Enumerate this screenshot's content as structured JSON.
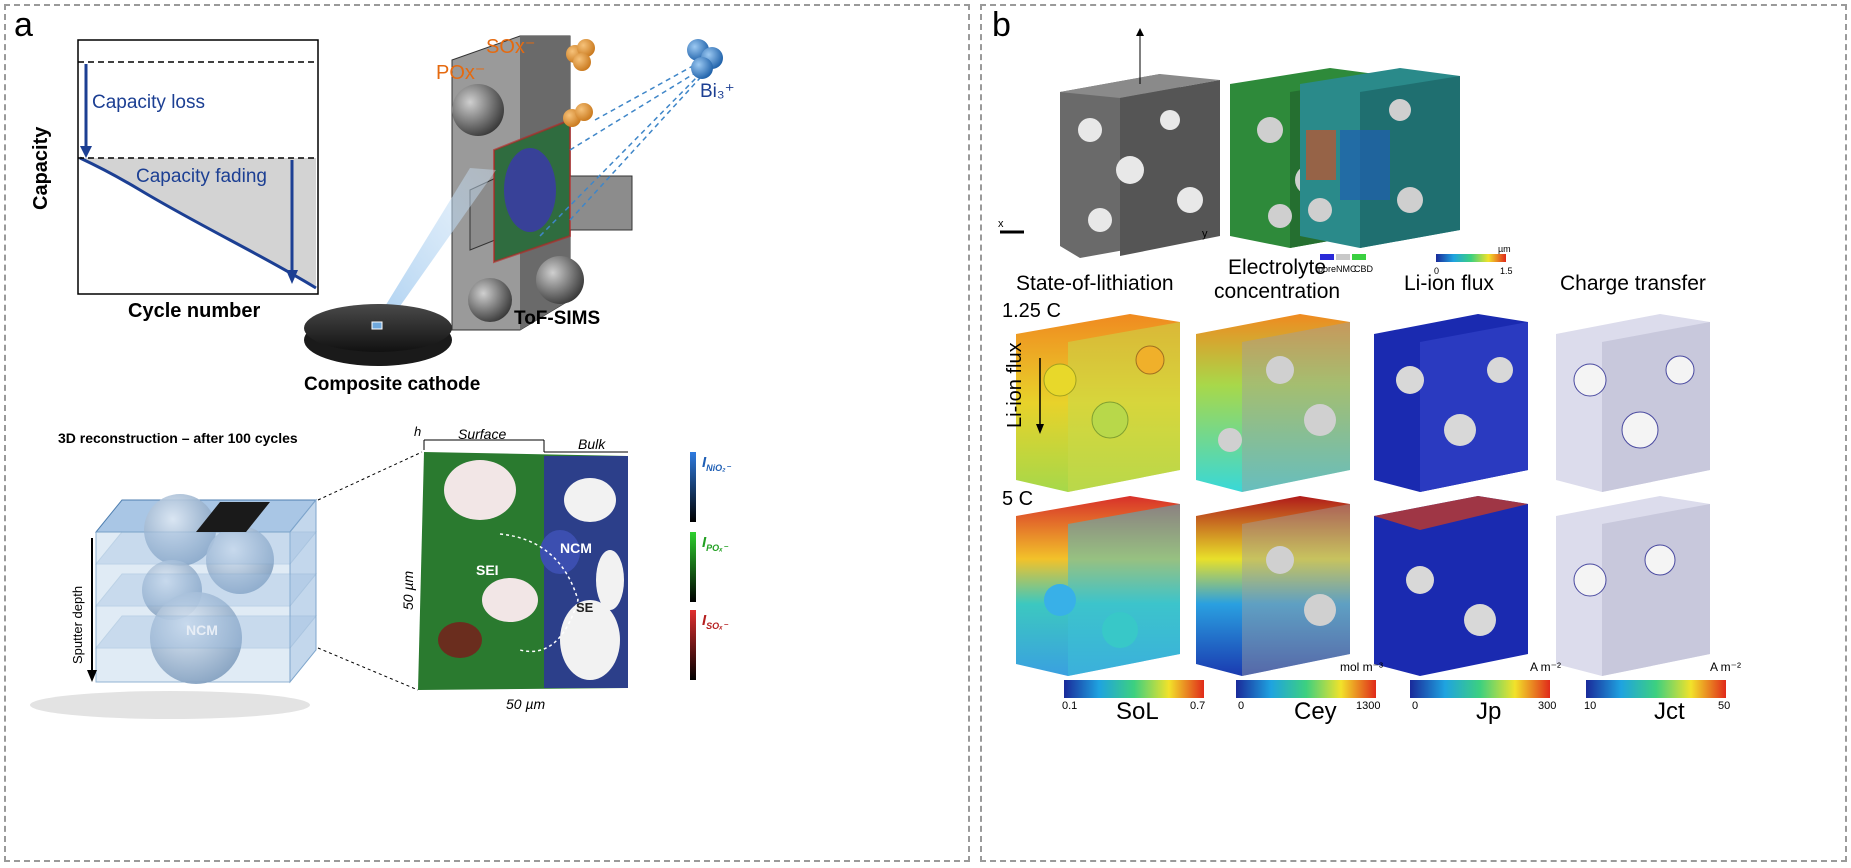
{
  "panel_a": {
    "label": "a",
    "plot": {
      "ylabel": "Capacity",
      "xlabel": "Cycle number",
      "loss_label": "Capacity loss",
      "fading_label": "Capacity fading"
    },
    "cathode_label": "Composite cathode",
    "tofsims_label": "ToF-SIMS",
    "ion_sox": "SOx⁻",
    "ion_pox": "POx⁻",
    "ion_bi": "Bi₃⁺",
    "recon_title": "3D reconstruction – after 100 cycles",
    "sputter_label": "Sputter depth",
    "ncm_sphere_label": "NCM",
    "map": {
      "h_label": "h",
      "surface_label": "Surface",
      "bulk_label": "Bulk",
      "left_scale": "50 µm",
      "bottom_scale": "50 µm",
      "sei_label": "SEI",
      "ncm_label": "NCM",
      "se_label": "SE"
    },
    "legend": [
      {
        "letter": "I",
        "sub": "NiO₂⁻",
        "color": "#1f5fb5"
      },
      {
        "letter": "I",
        "sub": "POₓ⁻",
        "color": "#22a022"
      },
      {
        "letter": "I",
        "sub": "SOₓ⁻",
        "color": "#b51f1f"
      }
    ]
  },
  "panel_b": {
    "label": "b",
    "top_legend": {
      "pore": "pore",
      "nmc": "NMC",
      "cbd": "CBD"
    },
    "top_colorbar": {
      "unit": "µm",
      "min": "0",
      "max": "1.5"
    },
    "axis_x": "x",
    "axis_y": "y",
    "columns": [
      {
        "title": "State-of-lithiation"
      },
      {
        "title": "Electrolyte\nconcentration"
      },
      {
        "title": "Li-ion flux"
      },
      {
        "title": "Charge transfer"
      }
    ],
    "rate_1": "1.25 C",
    "rate_2": "5 C",
    "flux_label": "Li-ion flux",
    "colorbars": [
      {
        "min": "0.1",
        "max": "0.7",
        "symbol": "SoL",
        "unit": ""
      },
      {
        "min": "0",
        "max": "1300",
        "symbol": "Cey",
        "unit": "mol m⁻³"
      },
      {
        "min": "0",
        "max": "300",
        "symbol": "Jp",
        "unit": "A m⁻²"
      },
      {
        "min": "10",
        "max": "50",
        "symbol": "Jct",
        "unit": "A m⁻²"
      }
    ]
  }
}
